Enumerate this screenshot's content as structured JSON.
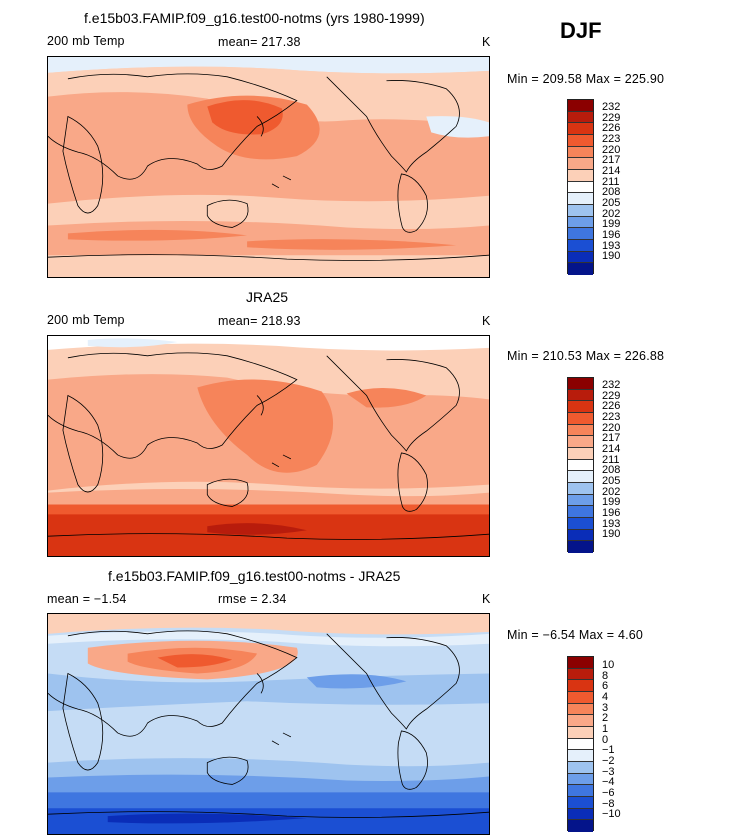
{
  "season": "DJF",
  "panels": [
    {
      "title": "f.e15b03.FAMIP.f09_g16.test00-notms (yrs 1980-1999)",
      "left_label": "200 mb Temp",
      "center_label": "mean= 217.38",
      "units": "K",
      "minmax": "Min = 209.58 Max = 225.90",
      "levels": [
        "232",
        "229",
        "226",
        "223",
        "220",
        "217",
        "214",
        "211",
        "208",
        "205",
        "202",
        "199",
        "196",
        "193",
        "190"
      ]
    },
    {
      "title": "JRA25",
      "left_label": "200 mb Temp",
      "center_label": "mean= 218.93",
      "units": "K",
      "minmax": "Min = 210.53 Max = 226.88",
      "levels": [
        "232",
        "229",
        "226",
        "223",
        "220",
        "217",
        "214",
        "211",
        "208",
        "205",
        "202",
        "199",
        "196",
        "193",
        "190"
      ]
    },
    {
      "title": "f.e15b03.FAMIP.f09_g16.test00-notms - JRA25",
      "left_label": "mean =   −1.54",
      "center_label": "rmse =    2.34",
      "units": "K",
      "minmax": "Min =  −6.54 Max =    4.60",
      "levels": [
        "10",
        "8",
        "6",
        "4",
        "3",
        "2",
        "1",
        "0",
        "−1",
        "−2",
        "−3",
        "−4",
        "−6",
        "−8",
        "−10"
      ]
    }
  ],
  "colors": {
    "palette": [
      "#8b0000",
      "#b81c0c",
      "#d93412",
      "#ef5a2f",
      "#f6845a",
      "#f9a888",
      "#fcd0b8",
      "#e5f0fb",
      "#c5dcf5",
      "#9ec3ef",
      "#6d9ee9",
      "#3f76e0",
      "#1b4fd3",
      "#0a2db8",
      "#04148a"
    ]
  }
}
